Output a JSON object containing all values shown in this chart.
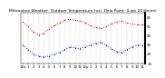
{
  "title": "Milwaukee Weather  Outdoor Temperature (vs)  Dew Point  (Last 24 Hours)",
  "temp_values": [
    55,
    50,
    44,
    41,
    43,
    47,
    51,
    54,
    57,
    58,
    57,
    56,
    54,
    51,
    49,
    48,
    50,
    53,
    55,
    56,
    54,
    53,
    52,
    52
  ],
  "dew_values": [
    30,
    25,
    20,
    18,
    17,
    18,
    20,
    22,
    25,
    28,
    27,
    26,
    28,
    30,
    32,
    33,
    30,
    26,
    23,
    22,
    25,
    28,
    30,
    30
  ],
  "temp_color": "#ff0000",
  "dew_color": "#0000ff",
  "bg_color": "#ffffff",
  "border_color": "#000000",
  "ylim": [
    10,
    65
  ],
  "yticks": [
    10,
    20,
    30,
    40,
    50,
    60
  ],
  "grid_color": "#888888",
  "title_fontsize": 3.2,
  "tick_fontsize": 2.8,
  "x_labels": [
    "12a",
    "1",
    "2",
    "3",
    "4",
    "5",
    "6",
    "7",
    "8",
    "9",
    "10",
    "11",
    "12p",
    "1",
    "2",
    "3",
    "4",
    "5",
    "6",
    "7",
    "8",
    "9",
    "10",
    "11"
  ],
  "n_points": 24,
  "linewidth": 0.7,
  "markersize": 1.8
}
